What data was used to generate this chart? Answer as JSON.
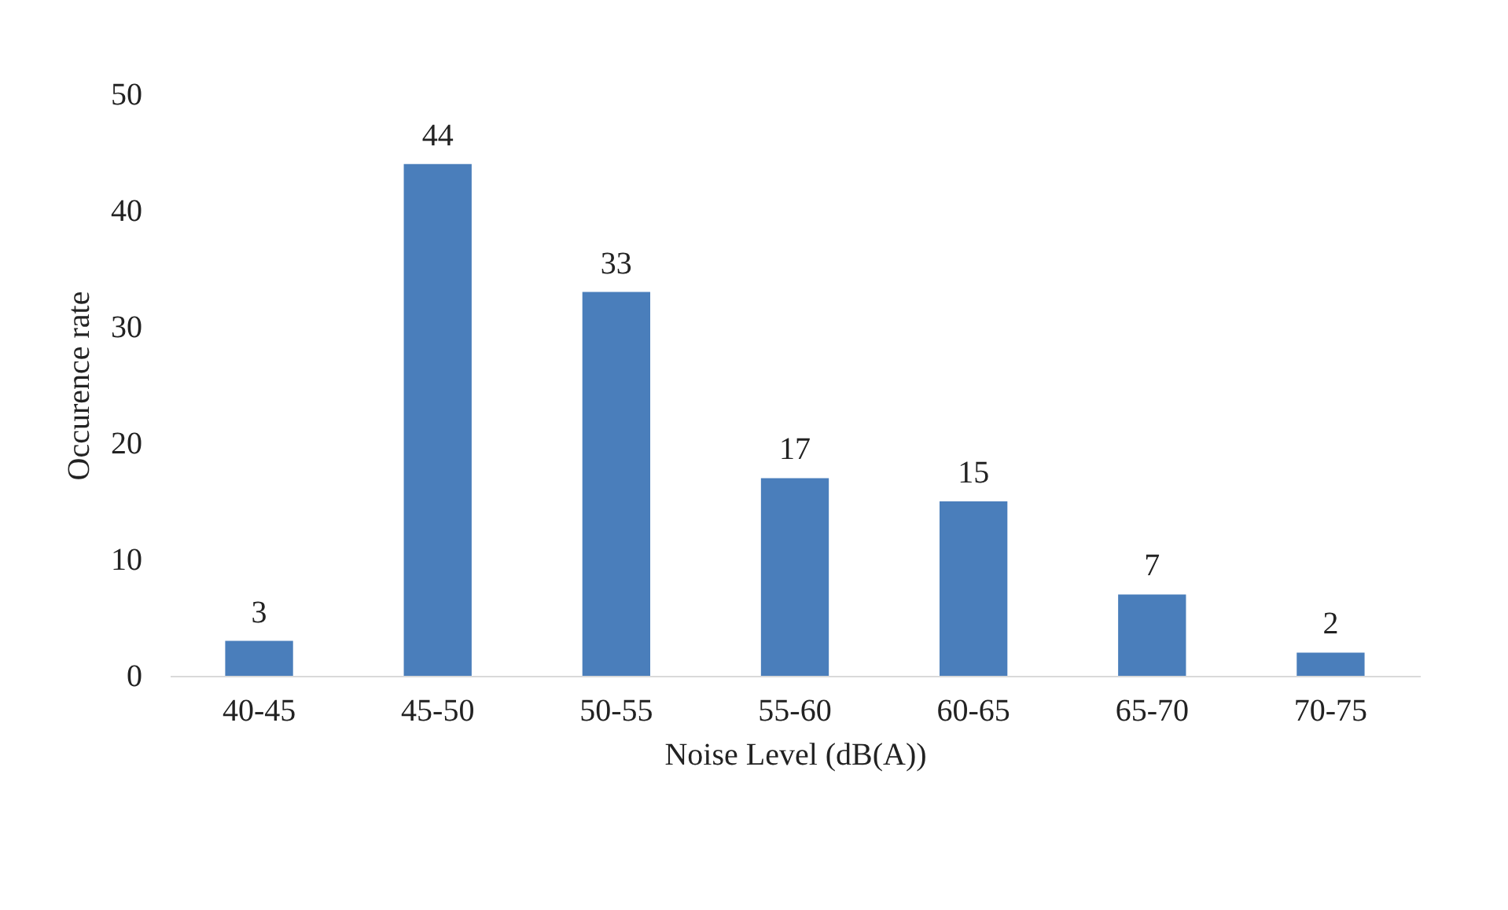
{
  "chart_data": {
    "type": "bar",
    "xlabel": "Noise Level (dB(A))",
    "ylabel": "Occurence rate",
    "categories": [
      "40-45",
      "45-50",
      "50-55",
      "55-60",
      "60-65",
      "65-70",
      "70-75"
    ],
    "values": [
      3,
      44,
      33,
      17,
      15,
      7,
      2
    ],
    "color": "#4a7ebb",
    "ylim": [
      0,
      50
    ],
    "yticks": [
      0,
      10,
      20,
      30,
      40,
      50
    ],
    "grid": false,
    "data_labels": true
  }
}
